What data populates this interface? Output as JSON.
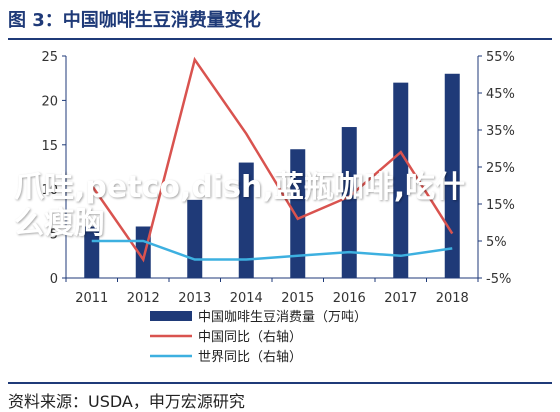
{
  "title": "图 3：中国咖啡生豆消费量变化",
  "source": "资料来源：USDA，申万宏源研究",
  "watermark": "爪哇,petco,dish,蓝瓶咖啡,吃什么瘦胸",
  "colors": {
    "bar": "#1f3a78",
    "china_yoy": "#d9534f",
    "world_yoy": "#3db0e0",
    "axis": "#1f3a78",
    "tick_text": "#333333"
  },
  "chart_data": {
    "type": "bar",
    "categories": [
      "2011",
      "2012",
      "2013",
      "2014",
      "2015",
      "2016",
      "2017",
      "2018"
    ],
    "ylim_left": [
      0,
      25
    ],
    "ylim_right": [
      -5,
      55
    ],
    "left_ticks": [
      "0",
      "5",
      "10",
      "15",
      "20",
      "25"
    ],
    "right_ticks": [
      "-5%",
      "5%",
      "15%",
      "25%",
      "35%",
      "45%",
      "55%"
    ],
    "series": [
      {
        "name": "中国咖啡生豆消费量（万吨）",
        "type": "bar",
        "axis": "left",
        "values": [
          5.8,
          5.8,
          8.8,
          13.0,
          14.5,
          17.0,
          22.0,
          23.0
        ]
      },
      {
        "name": "中国同比（右轴）",
        "type": "line",
        "axis": "right",
        "values": [
          20,
          0,
          54,
          34,
          11,
          17,
          29,
          7
        ]
      },
      {
        "name": "世界同比（右轴）",
        "type": "line",
        "axis": "right",
        "values": [
          5,
          5,
          0,
          0,
          1,
          2,
          1,
          3
        ]
      }
    ],
    "grid": false,
    "legend_position": "bottom"
  }
}
